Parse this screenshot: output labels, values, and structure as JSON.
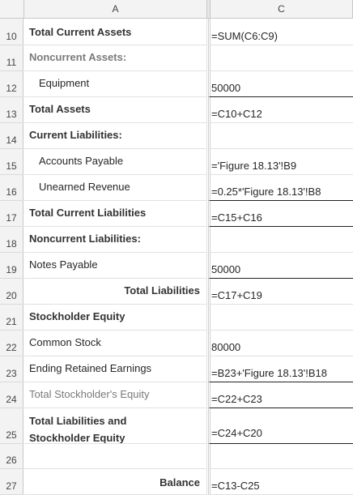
{
  "headers": {
    "col_a": "A",
    "col_c": "C"
  },
  "rows": [
    {
      "num": "10",
      "a": "Total Current Assets",
      "c": "=SUM(C6:C9)"
    },
    {
      "num": "11",
      "a": "Noncurrent Assets:",
      "c": ""
    },
    {
      "num": "12",
      "a": "Equipment",
      "c": "50000"
    },
    {
      "num": "13",
      "a": "Total Assets",
      "c": "=C10+C12"
    },
    {
      "num": "14",
      "a": "Current Liabilities:",
      "c": ""
    },
    {
      "num": "15",
      "a": "Accounts Payable",
      "c": "='Figure 18.13'!B9"
    },
    {
      "num": "16",
      "a": "Unearned Revenue",
      "c": "=0.25*'Figure 18.13'!B8"
    },
    {
      "num": "17",
      "a": "Total Current Liabilities",
      "c": "=C15+C16"
    },
    {
      "num": "18",
      "a": "Noncurrent Liabilities:",
      "c": ""
    },
    {
      "num": "19",
      "a": "Notes Payable",
      "c": "50000"
    },
    {
      "num": "20",
      "a": "Total Liabilities",
      "c": "=C17+C19"
    },
    {
      "num": "21",
      "a": "Stockholder Equity",
      "c": ""
    },
    {
      "num": "22",
      "a": "Common Stock",
      "c": "80000"
    },
    {
      "num": "23",
      "a": "Ending Retained Earnings",
      "c": "=B23+'Figure 18.13'!B18"
    },
    {
      "num": "24",
      "a": "Total Stockholder's Equity",
      "c": "=C22+C23"
    },
    {
      "num": "25",
      "a_line1": "Total Liabilities and",
      "a_line2": "Stockholder Equity",
      "c": "=C24+C20"
    },
    {
      "num": "26",
      "a": "",
      "c": ""
    },
    {
      "num": "27",
      "a": "Balance",
      "c": "=C13-C25"
    }
  ]
}
